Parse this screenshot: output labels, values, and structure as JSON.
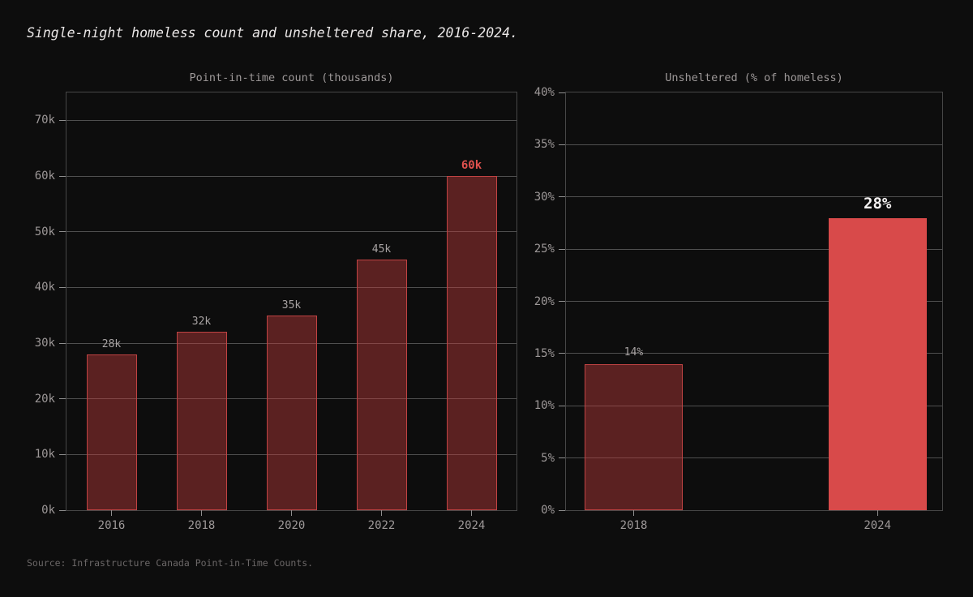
{
  "page": {
    "title": "Single-night homeless count and unsheltered share, 2016-2024.",
    "source": "Source: Infrastructure Canada Point-in-Time Counts.",
    "background": "#0d0d0d"
  },
  "colors": {
    "bar_fill": "rgba(200,63,63,0.42)",
    "bar_border": "#c04343",
    "highlight_bar_fill": "#d84a4a",
    "value_label": "#a8a3a3",
    "value_label_highlight_left": "#e0514e",
    "value_label_highlight_right": "#f4f1f1",
    "axis_text": "#9d9898",
    "gridline": "#4f4f4f",
    "spine": "#474747"
  },
  "chart_data": [
    {
      "type": "bar",
      "title": "Point-in-time count (thousands)",
      "categories": [
        "2016",
        "2018",
        "2020",
        "2022",
        "2024"
      ],
      "values": [
        28,
        32,
        35,
        45,
        60
      ],
      "bar_labels": [
        "28k",
        "32k",
        "35k",
        "45k",
        "60k"
      ],
      "unit": "thousands of people",
      "ylim": [
        0,
        75
      ],
      "yticks": [
        0,
        10,
        20,
        30,
        40,
        50,
        60,
        70
      ],
      "ytick_labels": [
        "0k",
        "10k",
        "20k",
        "30k",
        "40k",
        "50k",
        "60k",
        "70k"
      ],
      "grid": true,
      "legend": false,
      "highlight_label_index": 4,
      "highlight_bar_index": -1
    },
    {
      "type": "bar",
      "title": "Unsheltered (% of homeless)",
      "categories": [
        "2018",
        "2024"
      ],
      "values": [
        14,
        28
      ],
      "bar_labels": [
        "14%",
        "28%"
      ],
      "unit": "percent of homeless population",
      "ylim": [
        0,
        40
      ],
      "yticks": [
        0,
        5,
        10,
        15,
        20,
        25,
        30,
        35,
        40
      ],
      "ytick_labels": [
        "0%",
        "5%",
        "10%",
        "15%",
        "20%",
        "25%",
        "30%",
        "35%",
        "40%"
      ],
      "grid": true,
      "legend": false,
      "highlight_label_index": -1,
      "highlight_bar_index": 1
    }
  ]
}
